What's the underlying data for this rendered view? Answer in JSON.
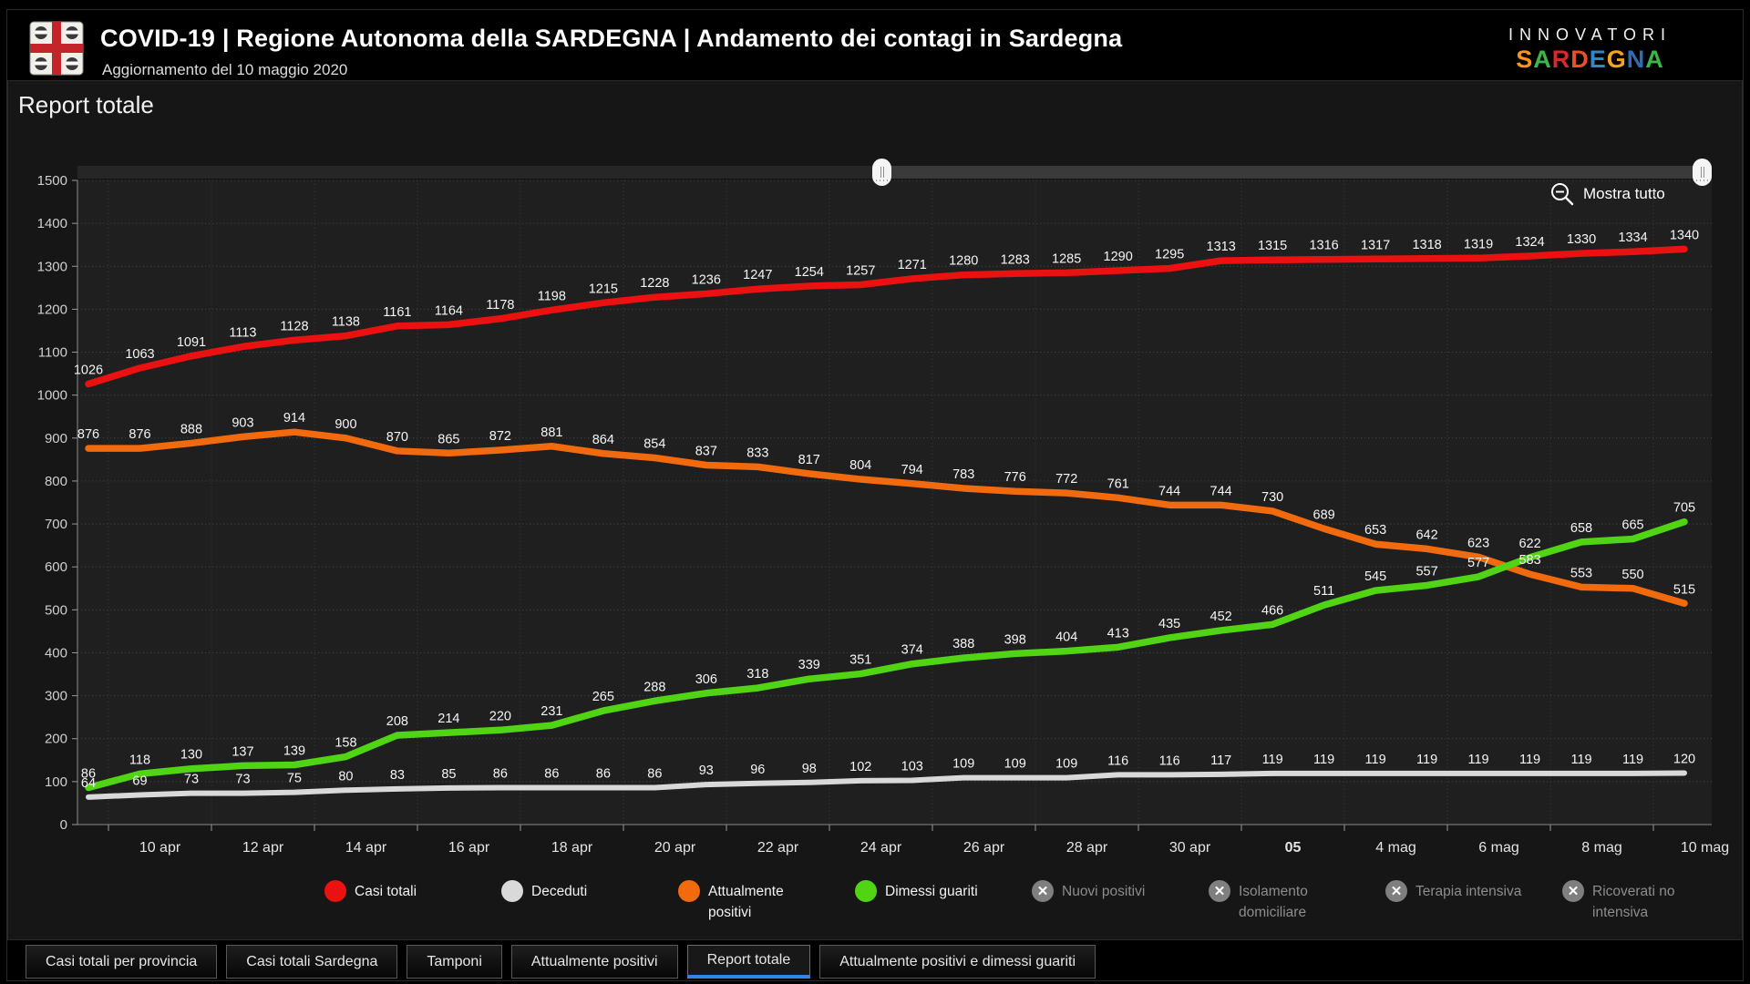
{
  "header": {
    "title": "COVID-19 | Regione Autonoma della SARDEGNA | Andamento dei contagi in Sardegna",
    "subtitle": "Aggiornamento del 10 maggio 2020",
    "logo": "sardegna-coat-of-arms",
    "brand": {
      "line1": "INNOVATORI",
      "line2": "SARDEGNA",
      "line2_colors": [
        "#f7941d",
        "#3cb54a",
        "#d7282f",
        "#e8502c",
        "#2e87c8",
        "#f7a41d",
        "#2e6db4",
        "#3cb54a"
      ]
    }
  },
  "report_title": "Report totale",
  "controls": {
    "show_all": "Mostra tutto",
    "zoom_out_icon": "magnifier-minus-icon"
  },
  "chart_data": {
    "type": "line",
    "title": "Report totale",
    "x": [
      "9 apr",
      "10 apr",
      "11 apr",
      "12 apr",
      "13 apr",
      "14 apr",
      "15 apr",
      "16 apr",
      "17 apr",
      "18 apr",
      "19 apr",
      "20 apr",
      "21 apr",
      "22 apr",
      "23 apr",
      "24 apr",
      "25 apr",
      "26 apr",
      "27 apr",
      "28 apr",
      "29 apr",
      "30 apr",
      "1 mag",
      "2 mag",
      "3 mag",
      "4 mag",
      "5 mag",
      "6 mag",
      "7 mag",
      "8 mag",
      "9 mag",
      "10 mag"
    ],
    "x_tick_labels": [
      "10 apr",
      "12 apr",
      "14 apr",
      "16 apr",
      "18 apr",
      "20 apr",
      "22 apr",
      "24 apr",
      "26 apr",
      "28 apr",
      "30 apr",
      "05",
      "4 mag",
      "6 mag",
      "8 mag",
      "10 mag"
    ],
    "ylim": [
      0,
      1500
    ],
    "ytick_step": 100,
    "grid": true,
    "legend_position": "bottom",
    "series": [
      {
        "name": "Casi totali",
        "color": "#ec1111",
        "values": [
          1026,
          1063,
          1091,
          1113,
          1128,
          1138,
          1161,
          1164,
          1178,
          1198,
          1215,
          1228,
          1236,
          1247,
          1254,
          1257,
          1271,
          1280,
          1283,
          1285,
          1290,
          1295,
          1313,
          1315,
          1316,
          1317,
          1318,
          1319,
          1324,
          1330,
          1334,
          1340
        ]
      },
      {
        "name": "Deceduti",
        "color": "#d9d9d9",
        "values": [
          64,
          69,
          73,
          73,
          75,
          80,
          83,
          85,
          86,
          86,
          86,
          86,
          93,
          96,
          98,
          102,
          103,
          109,
          109,
          109,
          116,
          116,
          117,
          119,
          119,
          119,
          119,
          119,
          119,
          119,
          119,
          120
        ]
      },
      {
        "name": "Attualmente positivi",
        "color": "#f26a0e",
        "values": [
          876,
          876,
          888,
          903,
          914,
          900,
          870,
          865,
          872,
          881,
          864,
          854,
          837,
          833,
          817,
          804,
          794,
          783,
          776,
          772,
          761,
          744,
          744,
          730,
          689,
          653,
          642,
          623,
          583,
          553,
          550,
          515
        ]
      },
      {
        "name": "Dimessi guariti",
        "color": "#50d414",
        "values": [
          86,
          118,
          130,
          137,
          139,
          158,
          208,
          214,
          220,
          231,
          265,
          288,
          306,
          318,
          339,
          351,
          374,
          388,
          398,
          404,
          413,
          435,
          452,
          466,
          511,
          545,
          557,
          577,
          622,
          658,
          665,
          705
        ]
      }
    ],
    "disabled_series": [
      "Nuovi positivi",
      "Isolamento domiciliare",
      "Terapia intensiva",
      "Ricoverati no intensiva"
    ]
  },
  "legend": {
    "items": [
      {
        "label": "Casi totali",
        "color": "#ec1111",
        "enabled": true
      },
      {
        "label": "Deceduti",
        "color": "#d9d9d9",
        "enabled": true
      },
      {
        "label": "Attualmente positivi",
        "color": "#f26a0e",
        "enabled": true
      },
      {
        "label": "Dimessi guariti",
        "color": "#50d414",
        "enabled": true
      },
      {
        "label": "Nuovi positivi",
        "enabled": false
      },
      {
        "label": "Isolamento domiciliare",
        "enabled": false
      },
      {
        "label": "Terapia intensiva",
        "enabled": false
      },
      {
        "label": "Ricoverati no intensiva",
        "enabled": false
      }
    ]
  },
  "tabs": [
    {
      "label": "Casi totali per provincia",
      "active": false
    },
    {
      "label": "Casi totali Sardegna",
      "active": false
    },
    {
      "label": "Tamponi",
      "active": false
    },
    {
      "label": "Attualmente positivi",
      "active": false
    },
    {
      "label": "Report totale",
      "active": true
    },
    {
      "label": "Attualmente positivi e dimessi guariti",
      "active": false
    }
  ]
}
